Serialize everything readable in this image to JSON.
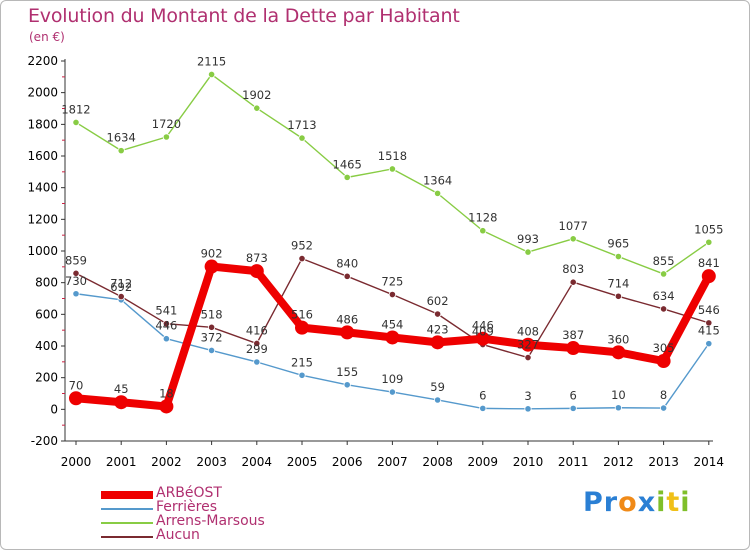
{
  "title": "Evolution du Montant de la Dette par Habitant",
  "subtitle": "(en €)",
  "logo": {
    "text": "Proxiti",
    "letter_colors": [
      "#2a7fd4",
      "#2a7fd4",
      "#f08a18",
      "#2a7fd4",
      "#7fbf2a",
      "#f0c018",
      "#7fbf2a"
    ]
  },
  "chart_data": {
    "type": "line",
    "xlabel": "",
    "ylabel": "",
    "categories": [
      "2000",
      "2001",
      "2002",
      "2003",
      "2004",
      "2005",
      "2006",
      "2007",
      "2008",
      "2009",
      "2010",
      "2011",
      "2012",
      "2013",
      "2014"
    ],
    "ylim": [
      -200,
      2200
    ],
    "yticks": [
      -200,
      0,
      200,
      400,
      600,
      800,
      1000,
      1200,
      1400,
      1600,
      1800,
      2000,
      2200
    ],
    "grid": false,
    "legend_position": "bottom-left",
    "series": [
      {
        "name": "ARBéOST",
        "color": "#ee0000",
        "values": [
          70,
          45,
          18,
          902,
          873,
          516,
          486,
          454,
          423,
          446,
          408,
          387,
          360,
          305,
          841
        ],
        "labels": [
          "70",
          "45",
          "18",
          "902",
          "873",
          "516",
          "486",
          "454",
          "423",
          "446",
          "408",
          "387",
          "360",
          "305",
          "841"
        ]
      },
      {
        "name": "Ferrières",
        "color": "#5599cc",
        "values": [
          730,
          692,
          446,
          372,
          299,
          215,
          155,
          109,
          59,
          6,
          3,
          6,
          10,
          8,
          415
        ],
        "labels": [
          "730",
          "692",
          "446",
          "372",
          "299",
          "215",
          "155",
          "109",
          "59",
          "6",
          "3",
          "6",
          "10",
          "8",
          "415"
        ]
      },
      {
        "name": "Arrens-Marsous",
        "color": "#88cc44",
        "values": [
          1812,
          1634,
          1720,
          2115,
          1902,
          1713,
          1465,
          1518,
          1364,
          1128,
          993,
          1077,
          965,
          855,
          1055
        ],
        "labels": [
          "1812",
          "1634",
          "1720",
          "2115",
          "1902",
          "1713",
          "1465",
          "1518",
          "1364",
          "1128",
          "993",
          "1077",
          "965",
          "855",
          "1055"
        ]
      },
      {
        "name": "Aucun",
        "color": "#7a2a30",
        "values": [
          859,
          712,
          541,
          518,
          416,
          952,
          840,
          725,
          602,
          409,
          327,
          803,
          714,
          634,
          546
        ],
        "labels": [
          "859",
          "712",
          "541",
          "518",
          "416",
          "952",
          "840",
          "725",
          "602",
          "409",
          "327",
          "803",
          "714",
          "634",
          "546"
        ]
      }
    ]
  }
}
